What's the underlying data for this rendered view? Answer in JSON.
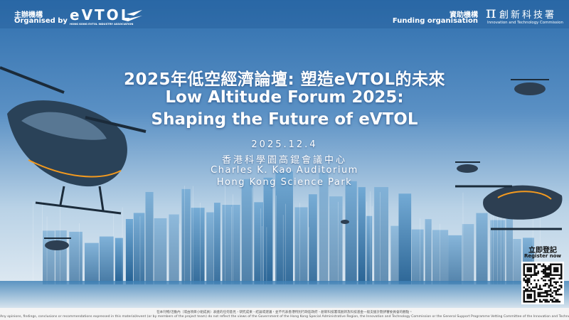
{
  "organiser": {
    "label_zh": "主辦機構",
    "label_en": "Organised by",
    "logo_text": "eVTOL",
    "logo_subtext": "HONG KONG EVTOL INDUSTRY ASSOCIATION"
  },
  "funder": {
    "label_zh": "資助機構",
    "label_en": "Funding organisation",
    "logo_symbol": "π",
    "name_zh": "創新科技署",
    "name_en": "Innovation and Technology Commission"
  },
  "event": {
    "title_zh": "2025年低空經濟論壇: 塑造eVTOL的未來",
    "title_en_line1": "Low Altitude Forum 2025:",
    "title_en_line2": "Shaping the Future of eVTOL",
    "date": "2025.12.4",
    "venue_zh": "香港科學園高錕會議中心",
    "venue_en_line1": "Charles K. Kao Auditorium",
    "venue_en_line2": "Hong Kong Science Park"
  },
  "register": {
    "label_zh": "立即登記",
    "label_en": "Register now"
  },
  "disclaimer": {
    "zh": "在本刊物/活動內（或由項目小組成員）表達的任何意見、研究成果、結論或建議，並不代表香港特別行政區政府、創新科技署或創新及科技基金一般支援計劃評審委員會的觀點。",
    "en": "Any opinions, findings, conclusions or recommendations expressed in this material/event (or by members of the project team) do not reflect the views of the Government of the Hong Kong Special Administrative Region, the Innovation and Technology Commission or the General Support Programme Vetting Committee of the Innovation and Technology Fund."
  }
}
